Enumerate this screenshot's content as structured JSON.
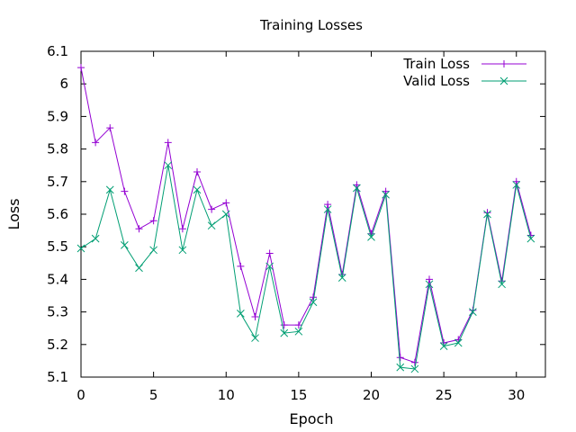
{
  "chart_data": {
    "type": "line",
    "title": "Training Losses",
    "xlabel": "Epoch",
    "ylabel": "Loss",
    "xlim": [
      0,
      32
    ],
    "ylim": [
      5.1,
      6.1
    ],
    "xticks": [
      0,
      5,
      10,
      15,
      20,
      25,
      30
    ],
    "yticks": [
      5.1,
      5.2,
      5.3,
      5.4,
      5.5,
      5.6,
      5.7,
      5.8,
      5.9,
      6,
      6.1
    ],
    "xtick_labels": [
      "0",
      "5",
      "10",
      "15",
      "20",
      "25",
      "30"
    ],
    "ytick_labels": [
      "5.1",
      "5.2",
      "5.3",
      "5.4",
      "5.5",
      "5.6",
      "5.7",
      "5.8",
      "5.9",
      "6",
      "6.1"
    ],
    "grid": false,
    "legend_position": "top-right",
    "x": [
      0,
      1,
      2,
      3,
      4,
      5,
      6,
      7,
      8,
      9,
      10,
      11,
      12,
      13,
      14,
      15,
      16,
      17,
      18,
      19,
      20,
      21,
      22,
      23,
      24,
      25,
      26,
      27,
      28,
      29,
      30,
      31
    ],
    "series": [
      {
        "name": "Train Loss",
        "color": "#9400d3",
        "marker": "plus",
        "values": [
          6.05,
          5.82,
          5.865,
          5.67,
          5.555,
          5.58,
          5.82,
          5.555,
          5.73,
          5.615,
          5.635,
          5.44,
          5.285,
          5.48,
          5.26,
          5.26,
          5.345,
          5.63,
          5.415,
          5.69,
          5.54,
          5.67,
          5.16,
          5.145,
          5.4,
          5.205,
          5.215,
          5.305,
          5.605,
          5.395,
          5.7,
          5.535
        ]
      },
      {
        "name": "Valid Loss",
        "color": "#009e73",
        "marker": "cross",
        "values": [
          5.495,
          5.525,
          5.675,
          5.505,
          5.435,
          5.49,
          5.75,
          5.49,
          5.675,
          5.565,
          5.6,
          5.295,
          5.22,
          5.44,
          5.235,
          5.24,
          5.33,
          5.615,
          5.405,
          5.68,
          5.53,
          5.66,
          5.13,
          5.125,
          5.385,
          5.195,
          5.205,
          5.3,
          5.6,
          5.385,
          5.69,
          5.525
        ]
      }
    ]
  }
}
